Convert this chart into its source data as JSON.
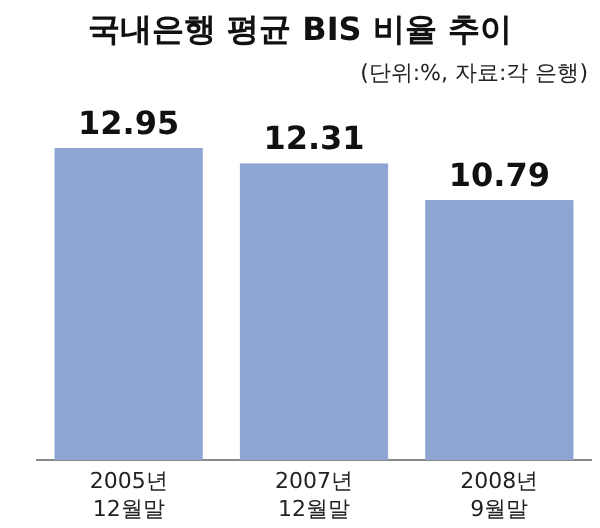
{
  "chart_data": {
    "type": "bar",
    "title": "국내은행 평균 BIS 비율 추이",
    "subtitle": "(단위:%, 자료:각 은행)",
    "categories": [
      "2005년\n12월말",
      "2007년\n12월말",
      "2008년\n9월말"
    ],
    "values": [
      12.95,
      12.31,
      10.79
    ],
    "color": "#8fa5d3",
    "data_labels": true
  }
}
